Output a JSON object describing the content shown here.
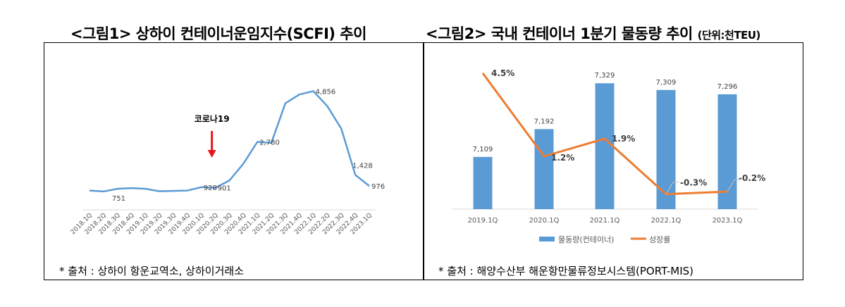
{
  "figures": [
    {
      "title": "<그림1> 상하이 컨테이너운임지수(SCFI) 추이",
      "note": "* 출처 : 상하이 항운교역소, 상하이거래소"
    },
    {
      "title": "<그림2> 국내 컨테이너 1분기 물동량 추이",
      "unit": "(단위:천TEU)",
      "note": "* 출처 : 해양수산부 해운항만물류정보시스템(PORT-MIS)"
    }
  ],
  "chart_data": [
    {
      "type": "line",
      "categories": [
        "2018.1Q",
        "2018.2Q",
        "2018.3Q",
        "2018.4Q",
        "2019.1Q",
        "2019.2Q",
        "2019.3Q",
        "2019.4Q",
        "2020.1Q",
        "2020.2Q",
        "2020.3Q",
        "2020.4Q",
        "2021.1Q",
        "2021.2Q",
        "2021.3Q",
        "2021.4Q",
        "2022.1Q",
        "2022.2Q",
        "2022.3Q",
        "2022.4Q",
        "2023.1Q"
      ],
      "values": [
        790,
        751,
        860,
        890,
        860,
        760,
        775,
        790,
        928,
        901,
        1200,
        1890,
        2780,
        2740,
        4360,
        4720,
        4856,
        4240,
        3320,
        1428,
        976
      ],
      "data_labels": {
        "1": "751",
        "8": "928",
        "9": "901",
        "12": "2,780",
        "16": "4,856",
        "19": "1,428",
        "20": "976"
      },
      "annotation": {
        "text": "코로나19",
        "at": "2020.2Q",
        "color": "#e8141b"
      },
      "ylim": [
        0,
        5000
      ],
      "grid": false,
      "color": "#5b9bd5"
    },
    {
      "type": "bar+line",
      "categories": [
        "2019.1Q",
        "2020.1Q",
        "2021.1Q",
        "2022.1Q",
        "2023.1Q"
      ],
      "series": [
        {
          "name": "물동량(컨테이너)",
          "type": "bar",
          "values": [
            7109,
            7192,
            7329,
            7309,
            7296
          ],
          "labels": [
            "7,109",
            "7,192",
            "7,329",
            "7,309",
            "7,296"
          ],
          "color": "#5b9bd5"
        },
        {
          "name": "성장률",
          "type": "line",
          "values": [
            4.5,
            1.2,
            1.9,
            -0.3,
            -0.2
          ],
          "labels": [
            "4.5%",
            "1.2%",
            "1.9%",
            "-0.3%",
            "-0.2%"
          ],
          "color": "#ed7d31"
        }
      ],
      "ylim": [
        6953,
        7380
      ],
      "y2lim": [
        -0.9,
        5.2
      ],
      "legend": "bottom",
      "grid": false
    }
  ]
}
